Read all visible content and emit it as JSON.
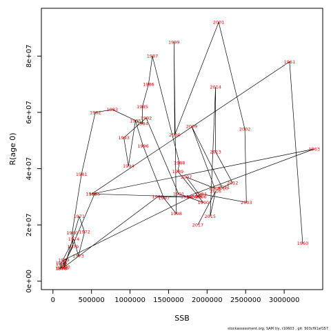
{
  "chart_data": {
    "type": "scatter",
    "xlabel": "SSB",
    "ylabel": "R(age 0)",
    "xlim": [
      -150000,
      3500000
    ],
    "ylim": [
      -3000000,
      97000000
    ],
    "x_ticks": [
      0,
      500000,
      1000000,
      1500000,
      2000000,
      2500000,
      3000000
    ],
    "x_tick_labels": [
      "0",
      "500000",
      "1000000",
      "1500000",
      "2000000",
      "2500000",
      "3000000"
    ],
    "y_ticks": [
      0,
      20000000,
      40000000,
      60000000,
      80000000
    ],
    "y_tick_labels": [
      "0e+00",
      "2e+07",
      "4e+07",
      "6e+07",
      "8e+07"
    ],
    "grid": false,
    "colors": {
      "line": "#000000",
      "labels": "#ff0000"
    },
    "points": [
      {
        "year": "1960",
        "x": 3240000,
        "y": 13500000
      },
      {
        "year": "1961",
        "x": 3070000,
        "y": 78000000
      },
      {
        "year": "1962",
        "x": 500000,
        "y": 31000000
      },
      {
        "year": "1963",
        "x": 3390000,
        "y": 47000000
      },
      {
        "year": "1964",
        "x": 1730000,
        "y": 30000000
      },
      {
        "year": "1965",
        "x": 540000,
        "y": 31000000
      },
      {
        "year": "1966",
        "x": 130000,
        "y": 4700000
      },
      {
        "year": "1967",
        "x": 1360000,
        "y": 30000000
      },
      {
        "year": "1968",
        "x": 1800000,
        "y": 30000000
      },
      {
        "year": "1969",
        "x": 140000,
        "y": 7500000
      },
      {
        "year": "1970",
        "x": 150000,
        "y": 5000000
      },
      {
        "year": "1971",
        "x": 340000,
        "y": 23000000
      },
      {
        "year": "1972",
        "x": 410000,
        "y": 17500000
      },
      {
        "year": "1973",
        "x": 330000,
        "y": 9000000
      },
      {
        "year": "1974",
        "x": 270000,
        "y": 15000000
      },
      {
        "year": "1975",
        "x": 110000,
        "y": 6500000
      },
      {
        "year": "1976",
        "x": 105000,
        "y": 4600000
      },
      {
        "year": "1977",
        "x": 110000,
        "y": 6000000
      },
      {
        "year": "1978",
        "x": 110000,
        "y": 4600000
      },
      {
        "year": "1979",
        "x": 260000,
        "y": 12300000
      },
      {
        "year": "1980",
        "x": 250000,
        "y": 17200000
      },
      {
        "year": "1981",
        "x": 370000,
        "y": 38000000
      },
      {
        "year": "1982",
        "x": 550000,
        "y": 60000000
      },
      {
        "year": "1983",
        "x": 770000,
        "y": 61000000
      },
      {
        "year": "1984",
        "x": 1160000,
        "y": 56000000
      },
      {
        "year": "1985",
        "x": 1160000,
        "y": 62000000
      },
      {
        "year": "1986",
        "x": 1240000,
        "y": 70000000
      },
      {
        "year": "1987",
        "x": 1290000,
        "y": 80000000
      },
      {
        "year": "1988",
        "x": 1640000,
        "y": 42000000
      },
      {
        "year": "1989",
        "x": 1620000,
        "y": 39000000
      },
      {
        "year": "1990",
        "x": 1950000,
        "y": 28000000
      },
      {
        "year": "1991",
        "x": 1630000,
        "y": 31000000
      },
      {
        "year": "1992",
        "x": 1210000,
        "y": 58000000
      },
      {
        "year": "1993",
        "x": 920000,
        "y": 51000000
      },
      {
        "year": "1994",
        "x": 980000,
        "y": 41000000
      },
      {
        "year": "1995",
        "x": 1070000,
        "y": 57000000
      },
      {
        "year": "1996",
        "x": 1170000,
        "y": 48000000
      },
      {
        "year": "1997",
        "x": 1440000,
        "y": 29500000
      },
      {
        "year": "1998",
        "x": 1600000,
        "y": 24000000
      },
      {
        "year": "1999",
        "x": 1570000,
        "y": 85000000
      },
      {
        "year": "2000",
        "x": 1580000,
        "y": 52000000
      },
      {
        "year": "2001",
        "x": 2150000,
        "y": 92000000
      },
      {
        "year": "2002",
        "x": 2490000,
        "y": 54000000
      },
      {
        "year": "2003",
        "x": 2510000,
        "y": 28000000
      },
      {
        "year": "2004",
        "x": 1920000,
        "y": 31000000
      },
      {
        "year": "2005",
        "x": 1870000,
        "y": 30000000
      },
      {
        "year": "2006",
        "x": 1920000,
        "y": 30000000
      },
      {
        "year": "2007",
        "x": 1730000,
        "y": 37000000
      },
      {
        "year": "2008",
        "x": 2100000,
        "y": 33000000
      },
      {
        "year": "2009",
        "x": 1800000,
        "y": 55000000
      },
      {
        "year": "2010",
        "x": 2200000,
        "y": 33000000
      },
      {
        "year": "2011",
        "x": 2220000,
        "y": 33500000
      },
      {
        "year": "2012",
        "x": 2330000,
        "y": 35000000
      },
      {
        "year": "2013",
        "x": 2110000,
        "y": 46000000
      },
      {
        "year": "2014",
        "x": 2110000,
        "y": 69000000
      },
      {
        "year": "2015",
        "x": 2040000,
        "y": 23000000
      },
      {
        "year": "2016",
        "x": 2110000,
        "y": 32000000
      },
      {
        "year": "2017",
        "x": 1880000,
        "y": 20000000
      }
    ],
    "footer": "stockassessment.org, SAM try, r10603 , git: 503cf91af157"
  }
}
